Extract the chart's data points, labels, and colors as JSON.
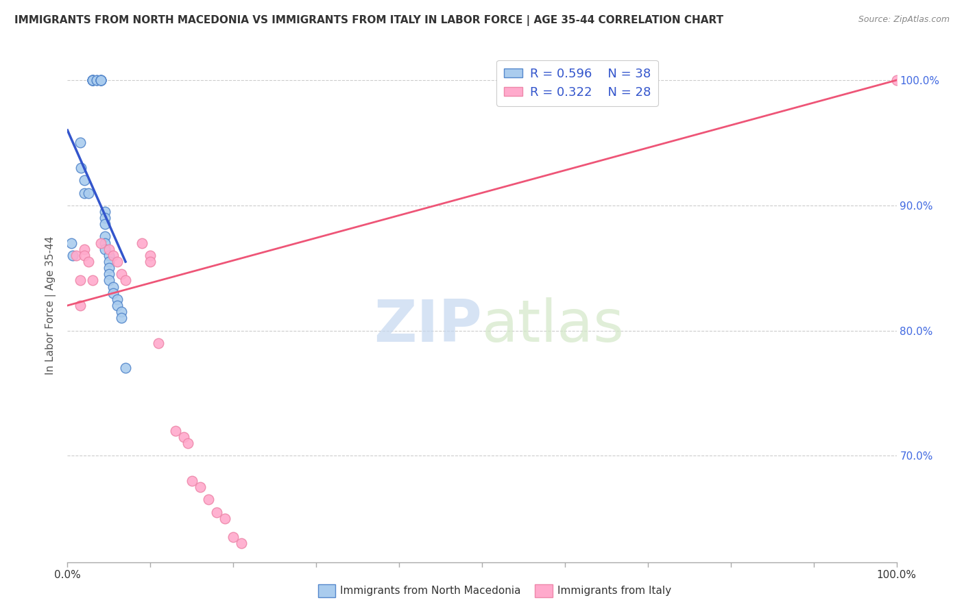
{
  "title": "IMMIGRANTS FROM NORTH MACEDONIA VS IMMIGRANTS FROM ITALY IN LABOR FORCE | AGE 35-44 CORRELATION CHART",
  "source": "Source: ZipAtlas.com",
  "ylabel": "In Labor Force | Age 35-44",
  "xmin": 0.0,
  "xmax": 1.0,
  "ymin": 0.615,
  "ymax": 1.025,
  "R_blue": 0.596,
  "N_blue": 38,
  "R_pink": 0.322,
  "N_pink": 28,
  "blue_scatter_x": [
    0.005,
    0.006,
    0.015,
    0.016,
    0.02,
    0.02,
    0.025,
    0.03,
    0.03,
    0.03,
    0.03,
    0.03,
    0.03,
    0.035,
    0.035,
    0.04,
    0.04,
    0.04,
    0.04,
    0.04,
    0.045,
    0.045,
    0.045,
    0.045,
    0.045,
    0.045,
    0.05,
    0.05,
    0.05,
    0.05,
    0.05,
    0.055,
    0.055,
    0.06,
    0.06,
    0.065,
    0.065,
    0.07
  ],
  "blue_scatter_y": [
    0.87,
    0.86,
    0.95,
    0.93,
    0.92,
    0.91,
    0.91,
    1.0,
    1.0,
    1.0,
    1.0,
    1.0,
    1.0,
    1.0,
    1.0,
    1.0,
    1.0,
    1.0,
    1.0,
    1.0,
    0.895,
    0.89,
    0.885,
    0.875,
    0.87,
    0.865,
    0.86,
    0.855,
    0.85,
    0.845,
    0.84,
    0.835,
    0.83,
    0.825,
    0.82,
    0.815,
    0.81,
    0.77
  ],
  "pink_scatter_x": [
    0.01,
    0.015,
    0.015,
    0.02,
    0.02,
    0.025,
    0.03,
    0.04,
    0.05,
    0.055,
    0.06,
    0.065,
    0.07,
    0.09,
    0.1,
    0.1,
    0.11,
    0.13,
    0.14,
    0.145,
    0.15,
    0.16,
    0.17,
    0.18,
    0.19,
    0.2,
    0.21,
    1.0
  ],
  "pink_scatter_y": [
    0.86,
    0.84,
    0.82,
    0.865,
    0.86,
    0.855,
    0.84,
    0.87,
    0.865,
    0.86,
    0.855,
    0.845,
    0.84,
    0.87,
    0.86,
    0.855,
    0.79,
    0.72,
    0.715,
    0.71,
    0.68,
    0.675,
    0.665,
    0.655,
    0.65,
    0.635,
    0.63,
    1.0
  ],
  "blue_line_start_x": 0.0,
  "blue_line_start_y": 0.96,
  "blue_line_end_x": 0.07,
  "blue_line_end_y": 0.855,
  "pink_line_start_x": 0.0,
  "pink_line_start_y": 0.82,
  "pink_line_end_x": 1.0,
  "pink_line_end_y": 1.0,
  "blue_line_color": "#3355cc",
  "pink_line_color": "#ee5577",
  "blue_scatter_color": "#aaccee",
  "pink_scatter_color": "#ffaacc",
  "blue_edge_color": "#5588cc",
  "pink_edge_color": "#ee88aa",
  "watermark_zip": "ZIP",
  "watermark_atlas": "atlas",
  "background_color": "#ffffff",
  "grid_color": "#cccccc",
  "right_ytick_labels": [
    "100.0%",
    "90.0%",
    "80.0%",
    "70.0%"
  ],
  "right_ytick_values": [
    1.0,
    0.9,
    0.8,
    0.7
  ]
}
